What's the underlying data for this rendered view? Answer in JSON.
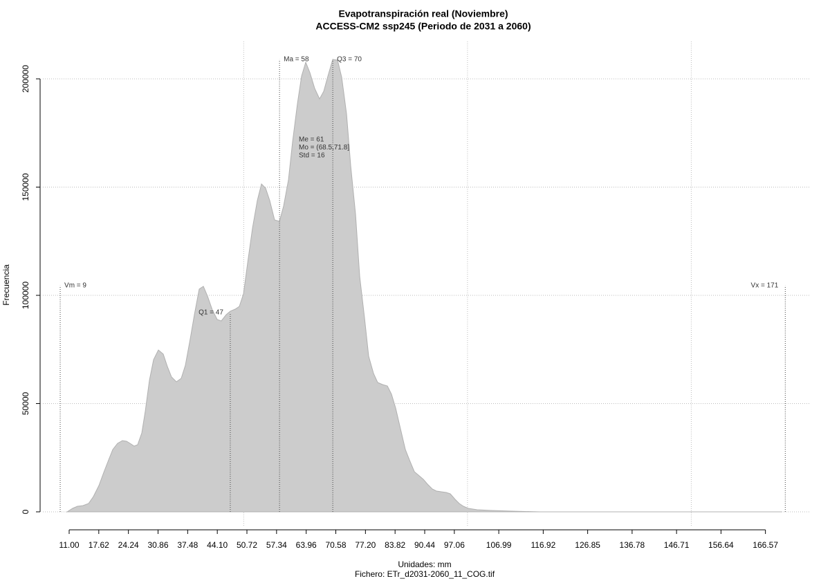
{
  "chart_data": {
    "type": "area",
    "title": "Evapotranspiración real (Noviembre)",
    "subtitle": "ACCESS-CM2 ssp245 (Periodo de 2031 a 2060)",
    "x_label": "Unidades: mm",
    "caption": "Fichero: ETr_d2031-2060_11_COG.tif",
    "y_label": "Frecuencia",
    "color": "#cccccc",
    "grid": true,
    "xlim": [
      5.13,
      176.36
    ],
    "ylim": [
      -6390,
      217250
    ],
    "xgrid": [
      50,
      100,
      150
    ],
    "xticks": [
      {
        "value": 11.0,
        "label": "11.00"
      },
      {
        "value": 17.62,
        "label": "17.62"
      },
      {
        "value": 24.24,
        "label": "24.24"
      },
      {
        "value": 30.86,
        "label": "30.86"
      },
      {
        "value": 37.48,
        "label": "37.48"
      },
      {
        "value": 44.1,
        "label": "44.10"
      },
      {
        "value": 50.72,
        "label": "50.72"
      },
      {
        "value": 57.34,
        "label": "57.34"
      },
      {
        "value": 63.96,
        "label": "63.96"
      },
      {
        "value": 70.58,
        "label": "70.58"
      },
      {
        "value": 77.2,
        "label": "77.20"
      },
      {
        "value": 83.82,
        "label": "83.82"
      },
      {
        "value": 90.44,
        "label": "90.44"
      },
      {
        "value": 97.06,
        "label": "97.06"
      },
      {
        "value": 106.99,
        "label": "106.99"
      },
      {
        "value": 116.92,
        "label": "116.92"
      },
      {
        "value": 126.85,
        "label": "126.85"
      },
      {
        "value": 136.78,
        "label": "136.78"
      },
      {
        "value": 146.71,
        "label": "146.71"
      },
      {
        "value": 156.64,
        "label": "156.64"
      },
      {
        "value": 166.57,
        "label": "166.57"
      }
    ],
    "yticks": [
      0,
      50000,
      100000,
      150000,
      200000
    ],
    "x": [
      10.54,
      11.77,
      12.85,
      14.09,
      15.33,
      16.41,
      17.65,
      18.73,
      19.81,
      20.74,
      21.82,
      22.9,
      23.83,
      24.6,
      25.53,
      26.3,
      27.23,
      28.0,
      28.93,
      29.86,
      30.94,
      32.02,
      32.95,
      33.87,
      34.96,
      36.04,
      36.97,
      38.05,
      38.98,
      40.06,
      40.99,
      41.91,
      42.99,
      44.08,
      45.0,
      46.08,
      47.01,
      48.09,
      49.02,
      49.95,
      50.88,
      51.96,
      53.04,
      53.97,
      54.89,
      55.82,
      56.9,
      57.99,
      58.91,
      60.0,
      60.92,
      62.0,
      62.93,
      63.86,
      64.79,
      65.87,
      66.95,
      67.88,
      68.81,
      69.89,
      70.97,
      71.9,
      72.98,
      73.91,
      74.99,
      75.92,
      77.0,
      77.92,
      79.01,
      79.93,
      81.02,
      82.1,
      83.02,
      83.95,
      85.03,
      86.12,
      87.04,
      88.13,
      89.05,
      90.13,
      91.06,
      92.14,
      93.07,
      94.15,
      95.23,
      96.16,
      97.24,
      98.17,
      99.1,
      100.18,
      102.19,
      105.28,
      109.92,
      116.1,
      170.2
    ],
    "y": [
      0,
      1600,
      2560,
      2880,
      3830,
      7030,
      12140,
      18210,
      23960,
      28760,
      31630,
      32910,
      32590,
      31630,
      30350,
      30990,
      36420,
      46330,
      60700,
      70290,
      74760,
      72850,
      67100,
      62300,
      60070,
      61660,
      67730,
      79880,
      91060,
      102880,
      104160,
      99680,
      93290,
      88820,
      88180,
      91060,
      92660,
      93610,
      94890,
      100640,
      115020,
      131000,
      143780,
      151440,
      149530,
      143780,
      134830,
      134190,
      141220,
      153360,
      170930,
      188510,
      201290,
      207680,
      202880,
      195530,
      190740,
      194260,
      201290,
      208950,
      208630,
      200650,
      183710,
      159750,
      137390,
      108630,
      89460,
      71890,
      63900,
      59750,
      58790,
      58150,
      54320,
      47930,
      38340,
      28760,
      23960,
      18530,
      16930,
      15020,
      12780,
      10540,
      9590,
      9270,
      8950,
      8310,
      5750,
      3830,
      2560,
      1600,
      960,
      640,
      320,
      0,
      0
    ],
    "annotations": [
      {
        "label": "Vm = 9",
        "x": 9,
        "top": 104500,
        "side": "right"
      },
      {
        "label": "Q1 = 47",
        "x": 47,
        "top": 92000,
        "side": "left"
      },
      {
        "label": "Ma = 58",
        "x": 58,
        "top": 209000,
        "side": "right"
      },
      {
        "label": "Q3 = 70",
        "x": 69.9,
        "top": 209000,
        "side": "right"
      },
      {
        "label": "Vx = 171",
        "x": 171,
        "top": 104500,
        "side": "left"
      }
    ],
    "stats": [
      "Me = 61",
      "Mo = (68.5,71.8]",
      "Std = 16"
    ]
  }
}
